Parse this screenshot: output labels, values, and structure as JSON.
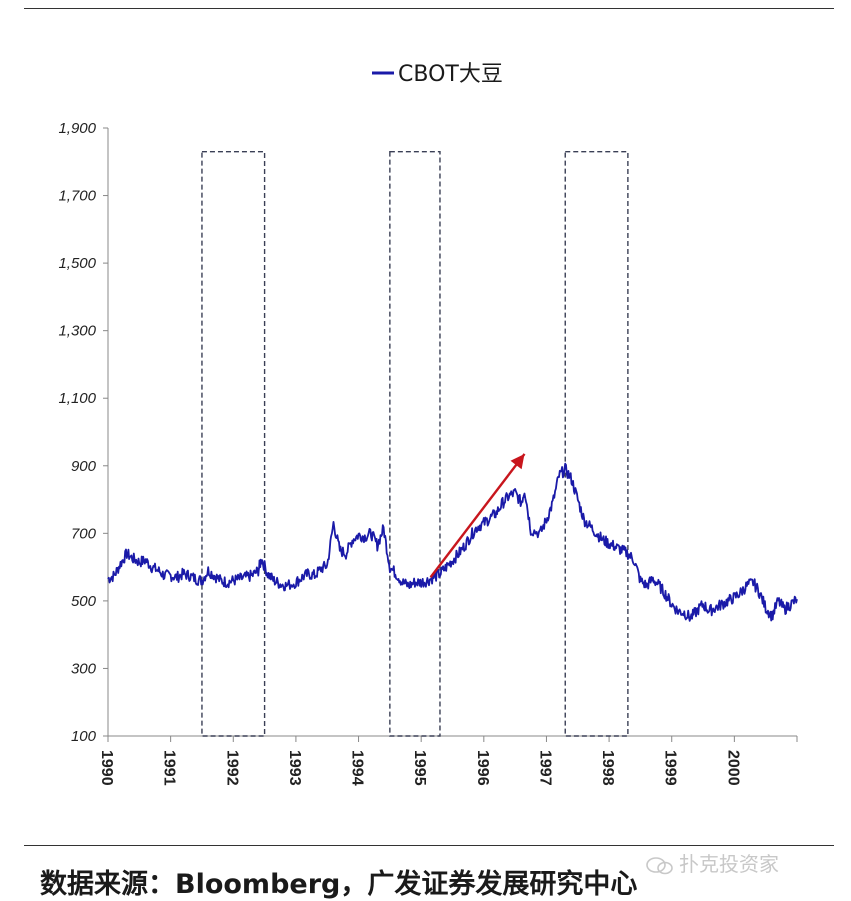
{
  "chart_data": {
    "type": "line",
    "series": [
      {
        "name": "CBOT大豆",
        "color": "#1a1aa8",
        "points": [
          [
            1990.0,
            565
          ],
          [
            1990.1,
            575
          ],
          [
            1990.2,
            610
          ],
          [
            1990.3,
            640
          ],
          [
            1990.4,
            625
          ],
          [
            1990.5,
            615
          ],
          [
            1990.6,
            620
          ],
          [
            1990.7,
            600
          ],
          [
            1990.8,
            590
          ],
          [
            1990.9,
            575
          ],
          [
            1991.0,
            575
          ],
          [
            1991.1,
            570
          ],
          [
            1991.2,
            580
          ],
          [
            1991.3,
            575
          ],
          [
            1991.4,
            565
          ],
          [
            1991.5,
            560
          ],
          [
            1991.6,
            590
          ],
          [
            1991.7,
            575
          ],
          [
            1991.8,
            560
          ],
          [
            1991.9,
            555
          ],
          [
            1992.0,
            560
          ],
          [
            1992.1,
            565
          ],
          [
            1992.2,
            570
          ],
          [
            1992.3,
            575
          ],
          [
            1992.4,
            590
          ],
          [
            1992.45,
            625
          ],
          [
            1992.55,
            580
          ],
          [
            1992.65,
            560
          ],
          [
            1992.75,
            550
          ],
          [
            1992.85,
            545
          ],
          [
            1993.0,
            555
          ],
          [
            1993.1,
            570
          ],
          [
            1993.2,
            580
          ],
          [
            1993.3,
            575
          ],
          [
            1993.4,
            595
          ],
          [
            1993.5,
            605
          ],
          [
            1993.6,
            730
          ],
          [
            1993.7,
            650
          ],
          [
            1993.8,
            640
          ],
          [
            1993.9,
            680
          ],
          [
            1994.0,
            695
          ],
          [
            1994.1,
            690
          ],
          [
            1994.2,
            700
          ],
          [
            1994.3,
            665
          ],
          [
            1994.4,
            715
          ],
          [
            1994.5,
            600
          ],
          [
            1994.6,
            580
          ],
          [
            1994.7,
            555
          ],
          [
            1994.8,
            545
          ],
          [
            1994.9,
            555
          ],
          [
            1995.0,
            555
          ],
          [
            1995.1,
            560
          ],
          [
            1995.2,
            570
          ],
          [
            1995.3,
            580
          ],
          [
            1995.4,
            600
          ],
          [
            1995.5,
            620
          ],
          [
            1995.6,
            640
          ],
          [
            1995.7,
            665
          ],
          [
            1995.8,
            695
          ],
          [
            1995.9,
            720
          ],
          [
            1996.0,
            730
          ],
          [
            1996.1,
            745
          ],
          [
            1996.2,
            760
          ],
          [
            1996.3,
            790
          ],
          [
            1996.4,
            810
          ],
          [
            1996.5,
            820
          ],
          [
            1996.6,
            790
          ],
          [
            1996.65,
            830
          ],
          [
            1996.75,
            710
          ],
          [
            1996.9,
            700
          ],
          [
            1997.0,
            740
          ],
          [
            1997.1,
            790
          ],
          [
            1997.2,
            870
          ],
          [
            1997.3,
            890
          ],
          [
            1997.4,
            860
          ],
          [
            1997.5,
            800
          ],
          [
            1997.6,
            740
          ],
          [
            1997.7,
            720
          ],
          [
            1997.8,
            700
          ],
          [
            1997.9,
            680
          ],
          [
            1998.0,
            670
          ],
          [
            1998.1,
            660
          ],
          [
            1998.2,
            650
          ],
          [
            1998.3,
            640
          ],
          [
            1998.4,
            620
          ],
          [
            1998.5,
            560
          ],
          [
            1998.6,
            545
          ],
          [
            1998.7,
            565
          ],
          [
            1998.8,
            545
          ],
          [
            1998.9,
            520
          ],
          [
            1999.0,
            490
          ],
          [
            1999.1,
            470
          ],
          [
            1999.2,
            465
          ],
          [
            1999.3,
            450
          ],
          [
            1999.4,
            470
          ],
          [
            1999.5,
            490
          ],
          [
            1999.6,
            470
          ],
          [
            1999.7,
            480
          ],
          [
            1999.8,
            490
          ],
          [
            1999.9,
            500
          ],
          [
            2000.0,
            510
          ],
          [
            2000.1,
            525
          ],
          [
            2000.2,
            545
          ],
          [
            2000.3,
            555
          ],
          [
            2000.4,
            525
          ],
          [
            2000.5,
            480
          ],
          [
            2000.6,
            455
          ],
          [
            2000.7,
            500
          ],
          [
            2000.8,
            475
          ],
          [
            2000.9,
            490
          ],
          [
            2001.0,
            505
          ]
        ]
      }
    ],
    "ylim": [
      100,
      1900
    ],
    "xlim": [
      1990,
      2001
    ],
    "y_ticks": [
      "1,900",
      "1,700",
      "1,500",
      "1,300",
      "1,100",
      "900",
      "700",
      "500",
      "300",
      "100"
    ],
    "y_tick_values": [
      1900,
      1700,
      1500,
      1300,
      1100,
      900,
      700,
      500,
      300,
      100
    ],
    "x_ticks": [
      "1990",
      "1991",
      "1992",
      "1993",
      "1994",
      "1995",
      "1996",
      "1997",
      "1998",
      "1999",
      "2000"
    ],
    "x_tick_values": [
      1990,
      1991,
      1992,
      1993,
      1994,
      1995,
      1996,
      1997,
      1998,
      1999,
      2000
    ],
    "legend": {
      "label": "CBOT大豆",
      "position": "top-center"
    },
    "grid": false,
    "highlight_boxes": [
      {
        "x_start": 1991.5,
        "x_end": 1992.5,
        "y_top": 1830
      },
      {
        "x_start": 1994.5,
        "x_end": 1995.3,
        "y_top": 1830
      },
      {
        "x_start": 1997.3,
        "x_end": 1998.3,
        "y_top": 1830
      }
    ],
    "arrow": {
      "from": [
        1995.15,
        570
      ],
      "to": [
        1996.65,
        935
      ],
      "color": "#c8161d"
    }
  },
  "footer": {
    "source": "数据来源：Bloomberg，广发证券发展研究中心",
    "watermark": "扑克投资家"
  }
}
